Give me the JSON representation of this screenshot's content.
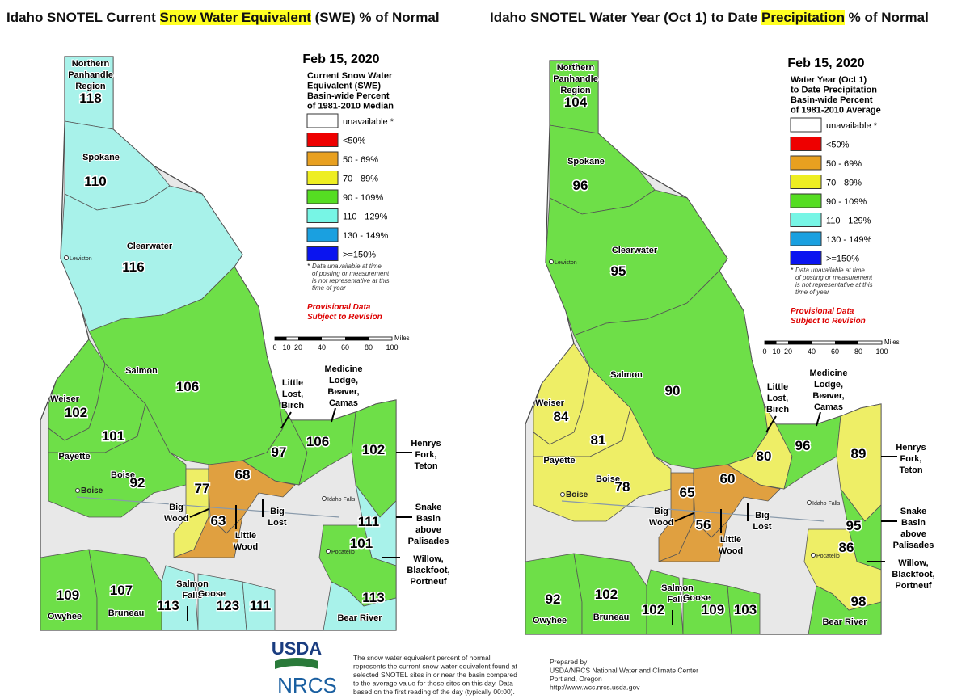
{
  "maps": [
    {
      "title": {
        "before": "Idaho SNOTEL Current ",
        "highlight": "Snow Water Equivalent",
        "after": " (SWE) % of Normal"
      },
      "legend_description": [
        "Current Snow Water",
        "Equivalent (SWE)",
        "Basin-wide Percent",
        "of 1981-2010 Median"
      ],
      "basins": [
        {
          "name": [
            "Northern",
            "Panhandle",
            "Region"
          ],
          "value": 118,
          "color": "#a8f2ea"
        },
        {
          "name": [
            "Spokane"
          ],
          "value": 110,
          "color": "#a8f2ea"
        },
        {
          "name": [
            "Clearwater"
          ],
          "value": 116,
          "color": "#a8f2ea"
        },
        {
          "name": [
            "Salmon"
          ],
          "value": 106,
          "color": "#6edf48"
        },
        {
          "name": [
            "Weiser"
          ],
          "value": 102,
          "color": "#6edf48"
        },
        {
          "name": [
            "Payette"
          ],
          "value": 101,
          "color": "#6edf48"
        },
        {
          "name": [
            "Boise"
          ],
          "value": 92,
          "color": "#6edf48"
        },
        {
          "name": [
            "Little",
            "Lost,",
            "Birch"
          ],
          "value": 97,
          "color": "#6edf48"
        },
        {
          "name": [
            "Medicine",
            "Lodge,",
            "Beaver,",
            "Camas"
          ],
          "value": 106,
          "color": "#6edf48"
        },
        {
          "name": [
            "Henrys",
            "Fork,",
            "Teton"
          ],
          "value": 102,
          "color": "#6edf48"
        },
        {
          "name": [
            "Big",
            "Wood"
          ],
          "value": 77,
          "color": "#eeee66"
        },
        {
          "name": [
            "Big",
            "Lost"
          ],
          "value": 68,
          "color": "#e0a040"
        },
        {
          "name": [
            "Little",
            "Wood"
          ],
          "value": 63,
          "color": "#e0a040"
        },
        {
          "name": [
            "Snake",
            "Basin",
            "above",
            "Palisades"
          ],
          "value": 111,
          "color": "#a8f2ea"
        },
        {
          "name": [
            "Willow,",
            "Blackfoot,",
            "Portneuf"
          ],
          "value": 101,
          "color": "#6edf48"
        },
        {
          "name": [
            "Owyhee"
          ],
          "value": 109,
          "color": "#6edf48"
        },
        {
          "name": [
            "Bruneau"
          ],
          "value": 107,
          "color": "#6edf48"
        },
        {
          "name": [
            "Salmon",
            "Falls"
          ],
          "value": 113,
          "color": "#a8f2ea"
        },
        {
          "name": [
            "Goose"
          ],
          "value": 123,
          "color": "#a8f2ea"
        },
        {
          "value": 111,
          "color": "#a8f2ea"
        },
        {
          "name": [
            "Bear River"
          ],
          "value": 113,
          "color": "#a8f2ea"
        }
      ]
    },
    {
      "title": {
        "before": "Idaho SNOTEL Water Year (Oct 1) to Date ",
        "highlight": "Precipitation",
        "after": " % of Normal"
      },
      "legend_description": [
        "Water Year (Oct 1)",
        "to Date Precipitation",
        "Basin-wide Percent",
        "of 1981-2010 Average"
      ],
      "basins": [
        {
          "name": [
            "Northern",
            "Panhandle",
            "Region"
          ],
          "value": 104,
          "color": "#6edf48"
        },
        {
          "name": [
            "Spokane"
          ],
          "value": 96,
          "color": "#6edf48"
        },
        {
          "name": [
            "Clearwater"
          ],
          "value": 95,
          "color": "#6edf48"
        },
        {
          "name": [
            "Salmon"
          ],
          "value": 90,
          "color": "#6edf48"
        },
        {
          "name": [
            "Weiser"
          ],
          "value": 84,
          "color": "#eeee66"
        },
        {
          "name": [
            "Payette"
          ],
          "value": 81,
          "color": "#eeee66"
        },
        {
          "name": [
            "Boise"
          ],
          "value": 78,
          "color": "#eeee66"
        },
        {
          "name": [
            "Little",
            "Lost,",
            "Birch"
          ],
          "value": 80,
          "color": "#eeee66"
        },
        {
          "name": [
            "Medicine",
            "Lodge,",
            "Beaver,",
            "Camas"
          ],
          "value": 96,
          "color": "#6edf48"
        },
        {
          "name": [
            "Henrys",
            "Fork,",
            "Teton"
          ],
          "value": 89,
          "color": "#eeee66"
        },
        {
          "name": [
            "Big",
            "Wood"
          ],
          "value": 65,
          "color": "#e0a040"
        },
        {
          "name": [
            "Big",
            "Lost"
          ],
          "value": 60,
          "color": "#e0a040"
        },
        {
          "name": [
            "Little",
            "Wood"
          ],
          "value": 56,
          "color": "#e0a040"
        },
        {
          "name": [
            "Snake",
            "Basin",
            "above",
            "Palisades"
          ],
          "value": 95,
          "color": "#6edf48"
        },
        {
          "name": [
            "Willow,",
            "Blackfoot,",
            "Portneuf"
          ],
          "value": 86,
          "color": "#eeee66"
        },
        {
          "name": [
            "Owyhee"
          ],
          "value": 92,
          "color": "#6edf48"
        },
        {
          "name": [
            "Bruneau"
          ],
          "value": 102,
          "color": "#6edf48"
        },
        {
          "name": [
            "Salmon",
            "Falls"
          ],
          "value": 102,
          "color": "#6edf48"
        },
        {
          "name": [
            "Goose"
          ],
          "value": 109,
          "color": "#6edf48"
        },
        {
          "value": 103,
          "color": "#6edf48"
        },
        {
          "name": [
            "Bear River"
          ],
          "value": 98,
          "color": "#6edf48"
        }
      ]
    }
  ],
  "date": "Feb 15, 2020",
  "legend": [
    {
      "label": "unavailable *",
      "color": "#ffffff"
    },
    {
      "label": "<50%",
      "color": "#ee0000"
    },
    {
      "label": "50 - 69%",
      "color": "#e8a020"
    },
    {
      "label": "70 - 89%",
      "color": "#eeee22"
    },
    {
      "label": "90 - 109%",
      "color": "#55dd22"
    },
    {
      "label": "110 - 129%",
      "color": "#77f5e5"
    },
    {
      "label": "130 - 149%",
      "color": "#1aa0e0"
    },
    {
      "label": ">=150%",
      "color": "#0a14f0"
    }
  ],
  "footnote": {
    "mark": "*",
    "lines": [
      "Data unavailable at time",
      "of posting or measurement",
      "is not representative at this",
      "time of year"
    ]
  },
  "provisional": [
    "Provisional Data",
    "Subject to Revision"
  ],
  "scale": {
    "unit": "Miles",
    "ticks": [
      0,
      10,
      20,
      40,
      60,
      80,
      100
    ]
  },
  "cities": [
    "Lewiston",
    "Boise",
    "Idaho Falls",
    "Pocatello"
  ],
  "footer": {
    "logos": [
      "USDA",
      "NRCS"
    ],
    "note": [
      "The snow water equivalent percent of normal",
      "represents the current snow water equivalent found at",
      "selected SNOTEL sites in or near the basin compared",
      "to the average value for those sites on this day. Data",
      "based on the first reading of the day (typically 00:00)."
    ],
    "prepared": [
      "Prepared by:",
      "USDA/NRCS National Water and Climate Center",
      "Portland, Oregon",
      "http://www.wcc.nrcs.usda.gov"
    ]
  }
}
